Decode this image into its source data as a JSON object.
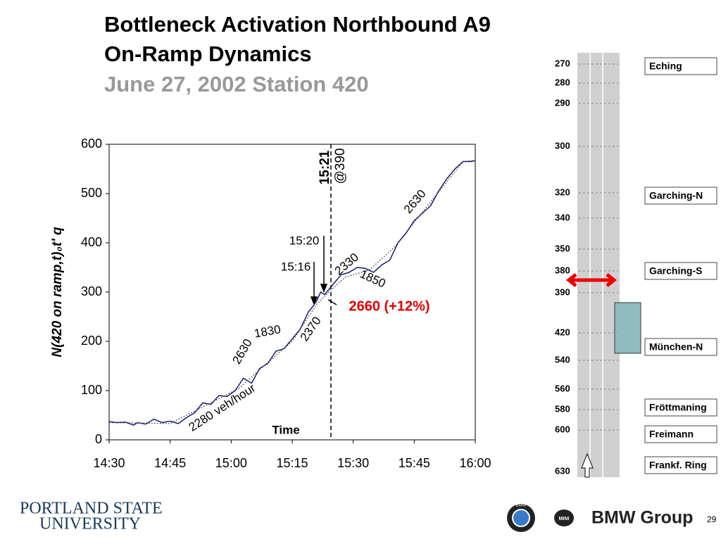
{
  "slide": {
    "title_lines": [
      "Bottleneck Activation Northbound A9",
      "On-Ramp Dynamics"
    ],
    "subtitle": "June 27, 2002 Station 420"
  },
  "chart_data": {
    "type": "line",
    "xlabel": "Time",
    "ylabel": "N(420 on ramp,t)₀t' q",
    "xlim": [
      "14:30",
      "16:00"
    ],
    "xticks": [
      "14:30",
      "14:45",
      "15:00",
      "15:15",
      "15:30",
      "15:45",
      "16:00"
    ],
    "ylim": [
      0,
      600
    ],
    "yticks": [
      0,
      100,
      200,
      300,
      400,
      500,
      600
    ],
    "series": [
      {
        "color": "#1a1a7a",
        "style": "solid",
        "x": [
          "14:30",
          "14:32",
          "14:34",
          "14:36",
          "14:37",
          "14:39",
          "14:41",
          "14:43",
          "14:45",
          "14:47",
          "14:49",
          "14:51",
          "14:53",
          "14:55",
          "14:57",
          "14:59",
          "15:01",
          "15:03",
          "15:05",
          "15:07",
          "15:09",
          "15:11",
          "15:13",
          "15:15",
          "15:17",
          "15:19",
          "15:20",
          "15:21",
          "15:22",
          "15:23",
          "15:25",
          "15:27",
          "15:29",
          "15:31",
          "15:33",
          "15:35",
          "15:37",
          "15:39",
          "15:41",
          "15:43",
          "15:45",
          "15:47",
          "15:49",
          "15:51",
          "15:53",
          "15:55",
          "15:57",
          "15:59",
          "16:00"
        ],
        "values": [
          37,
          35,
          36,
          30,
          35,
          32,
          42,
          35,
          38,
          33,
          45,
          55,
          75,
          72,
          90,
          88,
          100,
          125,
          115,
          145,
          155,
          180,
          185,
          205,
          225,
          260,
          270,
          282,
          300,
          295,
          315,
          335,
          340,
          350,
          348,
          340,
          355,
          365,
          400,
          420,
          445,
          460,
          475,
          505,
          530,
          550,
          565,
          565,
          567
        ]
      },
      {
        "color": "#333333",
        "style": "dotted",
        "x": [
          "14:30",
          "14:45",
          "15:02",
          "15:08",
          "15:15",
          "15:21",
          "15:24",
          "15:28",
          "15:34",
          "15:40",
          "15:57",
          "16:00"
        ],
        "values": [
          35,
          33,
          105,
          150,
          200,
          275,
          300,
          330,
          345,
          390,
          565,
          567
        ]
      }
    ],
    "annotations": [
      {
        "text": "15:21",
        "color": "#000000"
      },
      {
        "text": "@390",
        "color": "#000000"
      },
      {
        "text": "15:20",
        "color": "#000000"
      },
      {
        "text": "15:16",
        "color": "#000000"
      },
      {
        "text": "2660 (+12%)",
        "color": "#e00000"
      },
      {
        "text": "2280 veh/hour",
        "color": "#000000"
      },
      {
        "text": "2630",
        "color": "#000000"
      },
      {
        "text": "1830",
        "color": "#000000"
      },
      {
        "text": "2370",
        "color": "#000000"
      },
      {
        "text": "2330",
        "color": "#000000"
      },
      {
        "text": "1850",
        "color": "#000000"
      },
      {
        "text": "2630",
        "color": "#000000"
      }
    ]
  },
  "diagram": {
    "stations": [
      270,
      280,
      290,
      300,
      320,
      340,
      350,
      380,
      390,
      420,
      540,
      560,
      580,
      600,
      630
    ],
    "exits": [
      "Eching",
      "Garching-N",
      "Garching-S",
      "München-N",
      "Fröttmaning",
      "Freimann",
      "Frankf. Ring"
    ]
  },
  "footer": {
    "university_lines": [
      "PORTLAND STATE",
      "UNIVERSITY"
    ],
    "brand": "BMW Group",
    "mini": "MINI",
    "bmw": "BMW",
    "page": "29"
  }
}
